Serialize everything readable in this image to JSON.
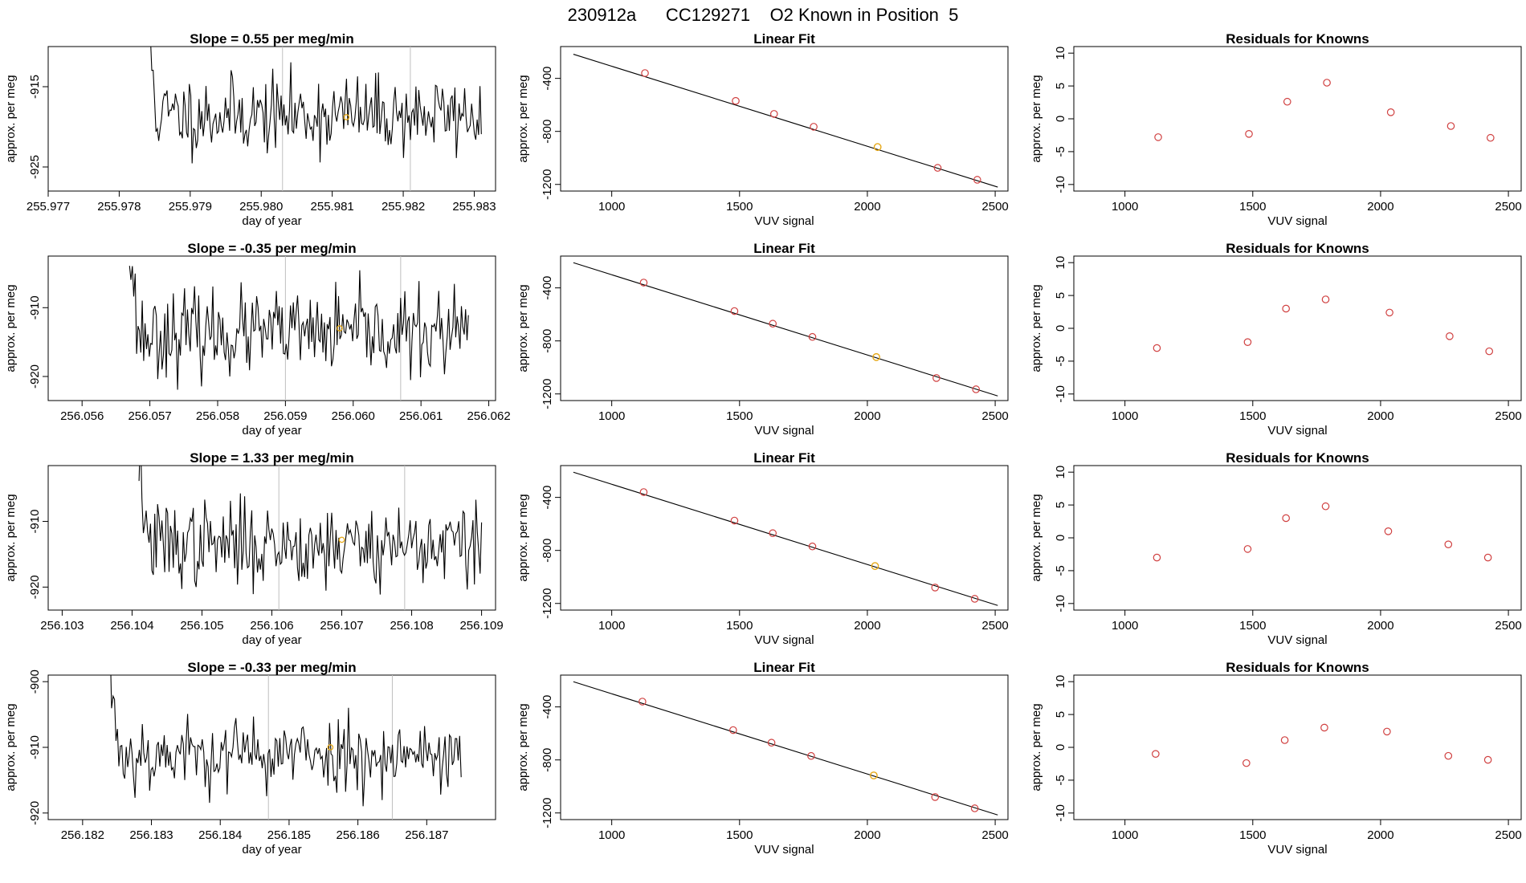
{
  "figure": {
    "title": "230912a      CC129271    O2 Known in Position  5"
  },
  "colors": {
    "trace": "#000000",
    "known_point": "#e6a817",
    "standard_point": "#d04040",
    "axis": "#000000",
    "marker_line": "#bfbfbf"
  },
  "chart_data": [
    {
      "type": "line",
      "row": 0,
      "title": "Slope =  0.55  per meg/min",
      "xlabel": "day of year",
      "ylabel": "approx. per meg",
      "xlim": [
        255.977,
        255.9833
      ],
      "ylim": [
        -928,
        -910
      ],
      "xticks": [
        255.977,
        255.978,
        255.979,
        255.98,
        255.981,
        255.982,
        255.983
      ],
      "xtick_labels": [
        "255.977",
        "255.978",
        "255.979",
        "255.980",
        "255.981",
        "255.982",
        "255.983"
      ],
      "yticks": [
        -925,
        -915
      ],
      "ytick_labels": [
        "-925",
        "-915"
      ],
      "series": [
        {
          "x_start": 255.9784,
          "x_end": 255.9831,
          "mean": -918.5,
          "sd": 2.4,
          "seed": 11,
          "values_note": ""
        }
      ],
      "markers_x": [
        255.9803,
        255.9821
      ],
      "known_point": {
        "x": 255.9812,
        "y": -918.8
      }
    },
    {
      "type": "scatter",
      "row": 0,
      "title": "Linear Fit",
      "xlabel": "VUV signal",
      "ylabel": "approx. per meg",
      "xlim": [
        800,
        2550
      ],
      "ylim": [
        -1250,
        -160
      ],
      "xticks": [
        1000,
        1500,
        2000,
        2500
      ],
      "xtick_labels": [
        "1000",
        "1500",
        "2000",
        "2500"
      ],
      "yticks": [
        -1200,
        -800,
        -400
      ],
      "ytick_labels": [
        "-1200",
        "-800",
        "-400"
      ],
      "fit_line": {
        "x": [
          850,
          2510
        ],
        "y": [
          -218,
          -1220
        ]
      },
      "points_x": [
        1130,
        1485,
        1635,
        1790,
        2275,
        2430
      ],
      "points_y": [
        -360,
        -570,
        -668,
        -765,
        -1075,
        -1165
      ],
      "known_point": {
        "x": 2040,
        "y": -918
      }
    },
    {
      "type": "scatter",
      "row": 0,
      "title": "Residuals for Knowns",
      "xlabel": "VUV signal",
      "ylabel": "approx. per meg",
      "xlim": [
        800,
        2550
      ],
      "ylim": [
        -11,
        11
      ],
      "xticks": [
        1000,
        1500,
        2000,
        2500
      ],
      "xtick_labels": [
        "1000",
        "1500",
        "2000",
        "2500"
      ],
      "yticks": [
        -10,
        -5,
        0,
        5,
        10
      ],
      "ytick_labels": [
        "-10",
        "-5",
        "0",
        "5",
        "10"
      ],
      "points_x": [
        1130,
        1485,
        1635,
        1790,
        2040,
        2275,
        2430
      ],
      "points_y": [
        -2.8,
        -2.3,
        2.6,
        5.5,
        1.0,
        -1.1,
        -2.9
      ]
    },
    {
      "type": "line",
      "row": 1,
      "title": "Slope =  -0.35  per meg/min",
      "xlabel": "day of year",
      "ylabel": "approx. per meg",
      "xlim": [
        256.0555,
        256.0621
      ],
      "ylim": [
        -923.5,
        -902.5
      ],
      "xticks": [
        256.056,
        256.057,
        256.058,
        256.059,
        256.06,
        256.061,
        256.062
      ],
      "xtick_labels": [
        "256.056",
        "256.057",
        "256.058",
        "256.059",
        "256.060",
        "256.061",
        "256.062"
      ],
      "yticks": [
        -920,
        -910
      ],
      "ytick_labels": [
        "-920",
        "-910"
      ],
      "series": [
        {
          "x_start": 256.0567,
          "x_end": 256.0617,
          "mean": -913.8,
          "sd": 3.0,
          "seed": 23,
          "values_note": ""
        }
      ],
      "markers_x": [
        256.059,
        256.0607
      ],
      "known_point": {
        "x": 256.0598,
        "y": -913.0
      }
    },
    {
      "type": "scatter",
      "row": 1,
      "title": "Linear Fit",
      "xlabel": "VUV signal",
      "ylabel": "approx. per meg",
      "xlim": [
        800,
        2550
      ],
      "ylim": [
        -1250,
        -160
      ],
      "xticks": [
        1000,
        1500,
        2000,
        2500
      ],
      "xtick_labels": [
        "1000",
        "1500",
        "2000",
        "2500"
      ],
      "yticks": [
        -1200,
        -800,
        -400
      ],
      "ytick_labels": [
        "-1200",
        "-800",
        "-400"
      ],
      "fit_line": {
        "x": [
          850,
          2510
        ],
        "y": [
          -210,
          -1215
        ]
      },
      "points_x": [
        1125,
        1480,
        1630,
        1785,
        2270,
        2425
      ],
      "points_y": [
        -360,
        -575,
        -670,
        -770,
        -1080,
        -1165
      ],
      "known_point": {
        "x": 2035,
        "y": -922
      }
    },
    {
      "type": "scatter",
      "row": 1,
      "title": "Residuals for Knowns",
      "xlabel": "VUV signal",
      "ylabel": "approx. per meg",
      "xlim": [
        800,
        2550
      ],
      "ylim": [
        -11,
        11
      ],
      "xticks": [
        1000,
        1500,
        2000,
        2500
      ],
      "xtick_labels": [
        "1000",
        "1500",
        "2000",
        "2500"
      ],
      "yticks": [
        -10,
        -5,
        0,
        5,
        10
      ],
      "ytick_labels": [
        "-10",
        "-5",
        "0",
        "5",
        "10"
      ],
      "points_x": [
        1125,
        1480,
        1630,
        1785,
        2035,
        2270,
        2425
      ],
      "points_y": [
        -3.0,
        -2.1,
        3.0,
        4.4,
        2.4,
        -1.2,
        -3.5
      ]
    },
    {
      "type": "line",
      "row": 2,
      "title": "Slope =  1.33  per meg/min",
      "xlabel": "day of year",
      "ylabel": "approx. per meg",
      "xlim": [
        256.1028,
        256.1092
      ],
      "ylim": [
        -923.5,
        -901.5
      ],
      "xticks": [
        256.103,
        256.104,
        256.105,
        256.106,
        256.107,
        256.108,
        256.109
      ],
      "xtick_labels": [
        "256.103",
        "256.104",
        "256.105",
        "256.106",
        "256.107",
        "256.108",
        "256.109"
      ],
      "yticks": [
        -920,
        -910
      ],
      "ytick_labels": [
        "-920",
        "-910"
      ],
      "series": [
        {
          "x_start": 256.1041,
          "x_end": 256.109,
          "mean": -913.5,
          "sd": 3.2,
          "seed": 37,
          "values_note": ""
        }
      ],
      "markers_x": [
        256.1061,
        256.1079
      ],
      "known_point": {
        "x": 256.107,
        "y": -912.8
      }
    },
    {
      "type": "scatter",
      "row": 2,
      "title": "Linear Fit",
      "xlabel": "VUV signal",
      "ylabel": "approx. per meg",
      "xlim": [
        800,
        2550
      ],
      "ylim": [
        -1250,
        -160
      ],
      "xticks": [
        1000,
        1500,
        2000,
        2500
      ],
      "xtick_labels": [
        "1000",
        "1500",
        "2000",
        "2500"
      ],
      "yticks": [
        -1200,
        -800,
        -400
      ],
      "ytick_labels": [
        "-1200",
        "-800",
        "-400"
      ],
      "fit_line": {
        "x": [
          850,
          2510
        ],
        "y": [
          -210,
          -1215
        ]
      },
      "points_x": [
        1125,
        1480,
        1630,
        1785,
        2265,
        2420
      ],
      "points_y": [
        -360,
        -575,
        -670,
        -770,
        -1080,
        -1165
      ],
      "known_point": {
        "x": 2030,
        "y": -918
      }
    },
    {
      "type": "scatter",
      "row": 2,
      "title": "Residuals for Knowns",
      "xlabel": "VUV signal",
      "ylabel": "approx. per meg",
      "xlim": [
        800,
        2550
      ],
      "ylim": [
        -11,
        11
      ],
      "xticks": [
        1000,
        1500,
        2000,
        2500
      ],
      "xtick_labels": [
        "1000",
        "1500",
        "2000",
        "2500"
      ],
      "yticks": [
        -10,
        -5,
        0,
        5,
        10
      ],
      "ytick_labels": [
        "-10",
        "-5",
        "0",
        "5",
        "10"
      ],
      "points_x": [
        1125,
        1480,
        1630,
        1785,
        2030,
        2265,
        2420
      ],
      "points_y": [
        -3.0,
        -1.7,
        3.0,
        4.8,
        1.0,
        -1.0,
        -3.0
      ]
    },
    {
      "type": "line",
      "row": 3,
      "title": "Slope =  -0.33  per meg/min",
      "xlabel": "day of year",
      "ylabel": "approx. per meg",
      "xlim": [
        256.1815,
        256.188
      ],
      "ylim": [
        -921,
        -899
      ],
      "xticks": [
        256.182,
        256.183,
        256.184,
        256.185,
        256.186,
        256.187
      ],
      "xtick_labels": [
        "256.182",
        "256.183",
        "256.184",
        "256.185",
        "256.186",
        "256.187"
      ],
      "yticks": [
        -920,
        -910,
        -900
      ],
      "ytick_labels": [
        "-920",
        "-910",
        "-900"
      ],
      "series": [
        {
          "x_start": 256.1824,
          "x_end": 256.1875,
          "mean": -911.0,
          "sd": 2.8,
          "seed": 53,
          "values_note": ""
        }
      ],
      "markers_x": [
        256.1847,
        256.1865
      ],
      "known_point": {
        "x": 256.1856,
        "y": -910.0
      }
    },
    {
      "type": "scatter",
      "row": 3,
      "title": "Linear Fit",
      "xlabel": "VUV signal",
      "ylabel": "approx. per meg",
      "xlim": [
        800,
        2550
      ],
      "ylim": [
        -1250,
        -160
      ],
      "xticks": [
        1000,
        1500,
        2000,
        2500
      ],
      "xtick_labels": [
        "1000",
        "1500",
        "2000",
        "2500"
      ],
      "yticks": [
        -1200,
        -800,
        -400
      ],
      "ytick_labels": [
        "-1200",
        "-800",
        "-400"
      ],
      "fit_line": {
        "x": [
          850,
          2510
        ],
        "y": [
          -210,
          -1215
        ]
      },
      "points_x": [
        1120,
        1475,
        1625,
        1780,
        2265,
        2420
      ],
      "points_y": [
        -360,
        -575,
        -670,
        -770,
        -1080,
        -1165
      ],
      "known_point": {
        "x": 2025,
        "y": -917
      }
    },
    {
      "type": "scatter",
      "row": 3,
      "title": "Residuals for Knowns",
      "xlabel": "VUV signal",
      "ylabel": "approx. per meg",
      "xlim": [
        800,
        2550
      ],
      "ylim": [
        -11,
        11
      ],
      "xticks": [
        1000,
        1500,
        2000,
        2500
      ],
      "xtick_labels": [
        "1000",
        "1500",
        "2000",
        "2500"
      ],
      "yticks": [
        -10,
        -5,
        0,
        5,
        10
      ],
      "ytick_labels": [
        "-10",
        "-5",
        "0",
        "5",
        "10"
      ],
      "points_x": [
        1120,
        1475,
        1625,
        1780,
        2025,
        2265,
        2420
      ],
      "points_y": [
        -1.0,
        -2.4,
        1.1,
        3.0,
        2.4,
        -1.3,
        -1.9
      ]
    }
  ]
}
